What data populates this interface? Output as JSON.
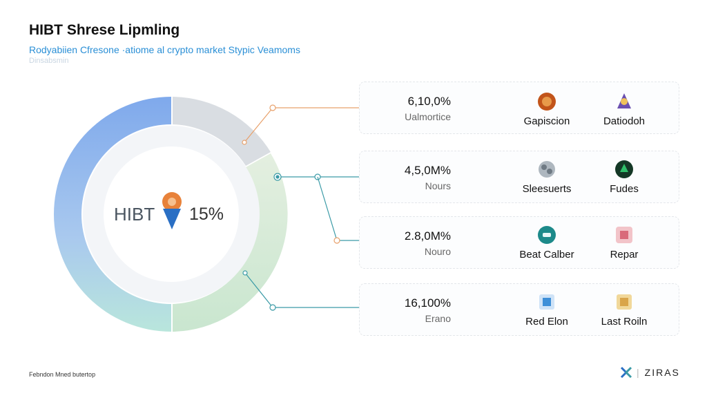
{
  "header": {
    "title": "HIBT Shrese Lipmling",
    "subtitle": "Rodyabiien Cfresone ·atiome al crypto market Stypic Veamoms",
    "subtitle2": "Dinsabsmin"
  },
  "center": {
    "label": "HIBT",
    "percent": "15%"
  },
  "rows": [
    {
      "value": "6,10,0%",
      "label": "Ualmortice",
      "coins": [
        {
          "name": "Gapiscion",
          "icon": "orange-coin-icon",
          "color": "#c2541a"
        },
        {
          "name": "Datiodoh",
          "icon": "purple-bird-icon",
          "color": "#6a4fb0"
        }
      ]
    },
    {
      "value": "4,5,0M%",
      "label": "Nours",
      "coins": [
        {
          "name": "Sleesuerts",
          "icon": "silver-cluster-icon",
          "color": "#7f8a94"
        },
        {
          "name": "Fudes",
          "icon": "green-hex-icon",
          "color": "#1f6b3c"
        }
      ]
    },
    {
      "value": "2.8,0M%",
      "label": "Nouro",
      "coins": [
        {
          "name": "Beat Calber",
          "icon": "teal-circle-icon",
          "color": "#1d8a8a"
        },
        {
          "name": "Repar",
          "icon": "pink-square-icon",
          "color": "#d96a7a"
        }
      ]
    },
    {
      "value": "16,100%",
      "label": "Erano",
      "coins": [
        {
          "name": "Red Elon",
          "icon": "blue-box-icon",
          "color": "#3d8fd8"
        },
        {
          "name": "Last Roiln",
          "icon": "gold-frame-icon",
          "color": "#d9a54a"
        }
      ]
    }
  ],
  "footer": {
    "note": "Febndon Mned butertop",
    "brand": "ZIRAS"
  },
  "colors": {
    "ring_blue": "#8fb6ea",
    "ring_green": "#cfe7c9",
    "ring_grey": "#d7dde3",
    "accent_orange": "#e8823a",
    "accent_teal": "#3a9aa6"
  },
  "chart_data": {
    "type": "pie",
    "title": "HIBT Shrese Lipmling",
    "center_label": "HIBT 15%",
    "legend": "right"
  }
}
